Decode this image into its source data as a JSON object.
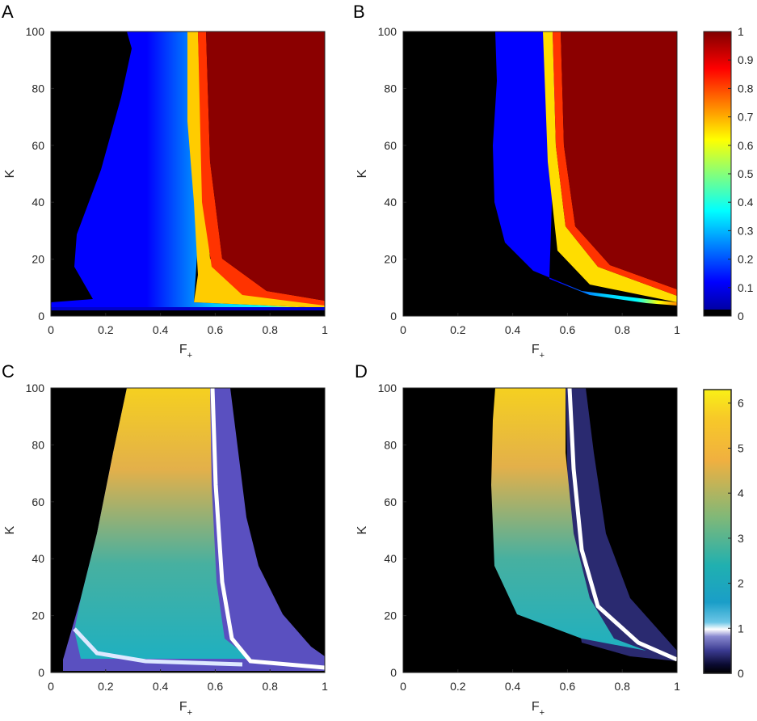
{
  "chart_data": [
    {
      "type": "heatmap",
      "panel_label": "A",
      "xlabel": "F",
      "xlabel_sub": "+",
      "ylabel": "K",
      "xlim": [
        0,
        1
      ],
      "ylim": [
        0,
        100
      ],
      "xticks": [
        "0",
        "0.2",
        "0.4",
        "0.6",
        "0.8",
        "1"
      ],
      "yticks": [
        "0",
        "20",
        "40",
        "60",
        "80",
        "100"
      ],
      "colormap": "jet",
      "regions": {
        "black_region": "F+ below ~0.10 at K=20, below ~0.27 at K=100; K below ~3",
        "transition_at_value_0.5": "F+ ≈ 0.55 at K=100 to F+ ≈ 0.60 at K=8",
        "value_1": "F+ above ~0.58 at K=100"
      }
    },
    {
      "type": "heatmap",
      "panel_label": "B",
      "xlabel": "F",
      "xlabel_sub": "+",
      "ylabel": "K",
      "xlim": [
        0,
        1
      ],
      "ylim": [
        0,
        100
      ],
      "xticks": [
        "0",
        "0.2",
        "0.4",
        "0.6",
        "0.8",
        "1"
      ],
      "yticks": [
        "0",
        "20",
        "40",
        "60",
        "80",
        "100"
      ],
      "colormap": "jet",
      "regions": {
        "black_region": "F+ below ~0.33 at K=100; below ~0.40 at K=20; K below ~5 near F+=1",
        "transition_at_value_0.5": "F+ ≈ 0.54 at K=100 to F+ ≈ 0.62 at K=15",
        "value_1": "F+ above ~0.57 at K=100"
      }
    },
    {
      "type": "heatmap",
      "panel_label": "C",
      "xlabel": "F",
      "xlabel_sub": "+",
      "ylabel": "K",
      "xlim": [
        0,
        1
      ],
      "ylim": [
        0,
        100
      ],
      "xticks": [
        "0",
        "0.2",
        "0.4",
        "0.6",
        "0.8",
        "1"
      ],
      "yticks": [
        "0",
        "20",
        "40",
        "60",
        "80",
        "100"
      ],
      "colormap": "parula-with-white-band",
      "regions": {
        "peak_value": "~5.5 near F+ ≈ 0.45, K ≈ 80",
        "white_ridge": "F+ ≈ 0.59 at K=100 to F+ ≈ 0.65 at K=10, then along K ≈ 4",
        "low_values": "purple (≈0.3–0.6) right of ridge, out to F+ ≈ 0.68 at K=100"
      }
    },
    {
      "type": "heatmap",
      "panel_label": "D",
      "xlabel": "F",
      "xlabel_sub": "+",
      "ylabel": "K",
      "xlim": [
        0,
        1
      ],
      "ylim": [
        0,
        100
      ],
      "xticks": [
        "0",
        "0.2",
        "0.4",
        "0.6",
        "0.8",
        "1"
      ],
      "yticks": [
        "0",
        "20",
        "40",
        "60",
        "80",
        "100"
      ],
      "colormap": "parula-with-white-band",
      "regions": {
        "peak_value": "~5.5 near F+ ≈ 0.45, K ≈ 90",
        "white_ridge": "F+ ≈ 0.62 at K=100 to F+ ≈ 0.75 at K=15 to F+ ≈ 0.95 at K=4",
        "low_values": "dark navy (≈0.1–0.5) right of ridge, out to F+ ≈ 0.72 at K=100"
      }
    }
  ],
  "colorbars": [
    {
      "colormap": "jet",
      "range": [
        0,
        1
      ],
      "ticks": [
        "0",
        "0.1",
        "0.2",
        "0.3",
        "0.4",
        "0.5",
        "0.6",
        "0.7",
        "0.8",
        "0.9",
        "1"
      ]
    },
    {
      "colormap": "parula-with-white-band",
      "range": [
        0,
        6.3
      ],
      "ticks": [
        "0",
        "1",
        "2",
        "3",
        "4",
        "5",
        "6"
      ]
    }
  ]
}
